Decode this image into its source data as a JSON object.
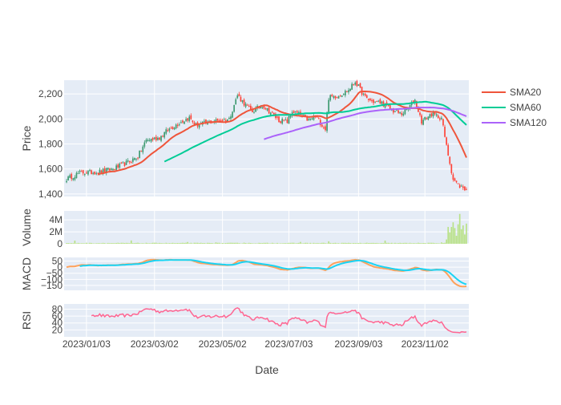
{
  "chart_data": {
    "type": "candlestick",
    "xlabel": "Date",
    "x_tick_labels": [
      "2023/01/03",
      "2023/03/02",
      "2023/05/02",
      "2023/07/03",
      "2023/09/03",
      "2023/11/02"
    ],
    "x_tick_index": [
      12,
      53,
      94,
      134,
      176,
      216
    ],
    "n_days": 242,
    "colors": {
      "up": "#3D9970",
      "down": "#FF4136",
      "plot_bg": "#E5ECF6",
      "grid": "#ffffff",
      "volume": "#B8E186",
      "macd": "#FFA15A",
      "signal": "#19D3F3",
      "rsi": "#FF6692"
    },
    "price_panel": {
      "ylabel": "Price",
      "ylim": [
        1380,
        2310
      ],
      "yticks": [
        1400,
        1600,
        1800,
        2000,
        2200
      ],
      "ytick_labels": [
        "1,400",
        "1,600",
        "1,800",
        "2,000",
        "2,200"
      ],
      "anchors": [
        [
          0,
          1520
        ],
        [
          8,
          1570
        ],
        [
          18,
          1575
        ],
        [
          28,
          1600
        ],
        [
          38,
          1660
        ],
        [
          43,
          1700
        ],
        [
          48,
          1830
        ],
        [
          56,
          1850
        ],
        [
          60,
          1900
        ],
        [
          68,
          1970
        ],
        [
          74,
          2010
        ],
        [
          78,
          1950
        ],
        [
          88,
          1980
        ],
        [
          98,
          2000
        ],
        [
          103,
          2190
        ],
        [
          108,
          2110
        ],
        [
          112,
          2060
        ],
        [
          118,
          2110
        ],
        [
          124,
          2040
        ],
        [
          128,
          1990
        ],
        [
          133,
          1980
        ],
        [
          136,
          2060
        ],
        [
          140,
          2040
        ],
        [
          146,
          1990
        ],
        [
          150,
          2020
        ],
        [
          156,
          1920
        ],
        [
          158,
          2170
        ],
        [
          164,
          2190
        ],
        [
          170,
          2230
        ],
        [
          174,
          2300
        ],
        [
          180,
          2170
        ],
        [
          184,
          2140
        ],
        [
          190,
          2130
        ],
        [
          196,
          2070
        ],
        [
          202,
          2040
        ],
        [
          206,
          2090
        ],
        [
          210,
          2150
        ],
        [
          214,
          1980
        ],
        [
          220,
          2040
        ],
        [
          226,
          2010
        ],
        [
          229,
          1780
        ],
        [
          233,
          1520
        ],
        [
          236,
          1470
        ],
        [
          242,
          1430
        ]
      ],
      "sma": [
        {
          "name": "SMA20",
          "color": "#EF553B",
          "window": 20
        },
        {
          "name": "SMA60",
          "color": "#00CC96",
          "window": 60
        },
        {
          "name": "SMA120",
          "color": "#AB63FA",
          "window": 120
        }
      ]
    },
    "volume_panel": {
      "ylabel": "Volume",
      "ylim": [
        0,
        5500000
      ],
      "yticks": [
        0,
        2000000,
        4000000
      ],
      "ytick_labels": [
        "0",
        "2M",
        "4M"
      ]
    },
    "macd_panel": {
      "ylabel": "MACD",
      "ylim": [
        -190,
        80
      ],
      "yticks": [
        50,
        0,
        -50,
        -100,
        -150
      ],
      "ytick_labels": [
        "50",
        "0",
        "−50",
        "−100",
        "−150"
      ]
    },
    "rsi_panel": {
      "ylabel": "RSI",
      "ylim": [
        0,
        95
      ],
      "yticks": [
        20,
        40,
        60,
        80
      ],
      "ytick_labels": [
        "20",
        "40",
        "60",
        "80"
      ]
    }
  }
}
